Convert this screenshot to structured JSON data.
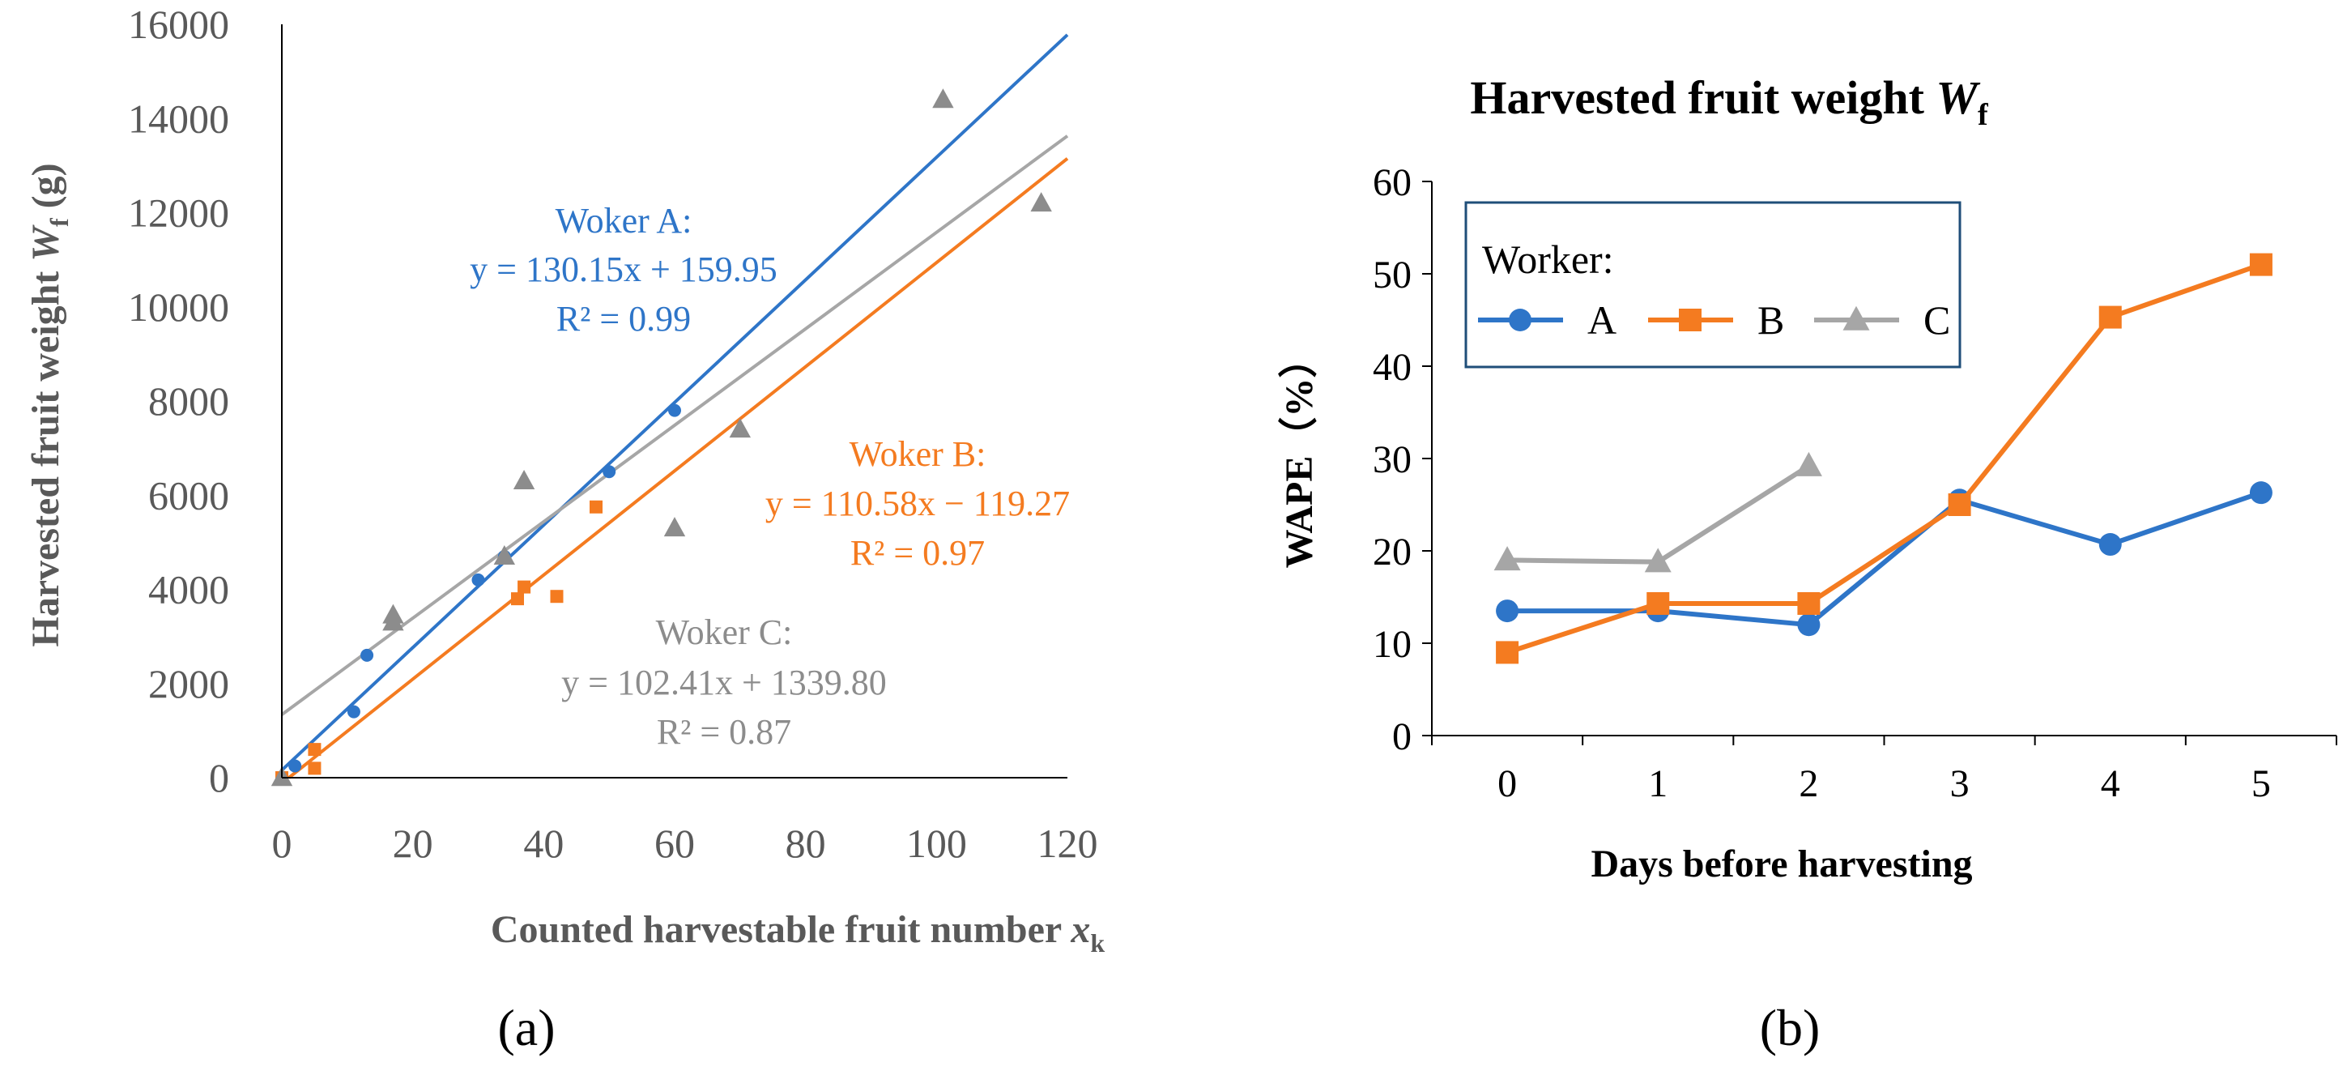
{
  "colors": {
    "A": "#2e75c8",
    "B": "#f47b20",
    "C": "#8c8c8c",
    "C_line": "#a6a6a6",
    "axis": "#000000",
    "tick_text": "#595959",
    "axis_title": "#595959"
  },
  "chart_data": [
    {
      "panel": "a",
      "type": "scatter",
      "title": "",
      "xlabel_main": "Counted harvestable fruit number ",
      "xlabel_var": "x",
      "xlabel_sub": "k",
      "ylabel_main": "Harvested fruit weight ",
      "ylabel_var": "W",
      "ylabel_sub": "f",
      "ylabel_unit": " (g)",
      "xlim": [
        0,
        120
      ],
      "ylim": [
        0,
        16000
      ],
      "xticks": [
        "0",
        "20",
        "40",
        "60",
        "80",
        "100",
        "120"
      ],
      "yticks": [
        "0",
        "2000",
        "4000",
        "6000",
        "8000",
        "10000",
        "12000",
        "14000",
        "16000"
      ],
      "grid": false,
      "series": [
        {
          "name": "Woker A",
          "marker": "circle",
          "points": [
            [
              0,
              0
            ],
            [
              2,
              250
            ],
            [
              11,
              1400
            ],
            [
              13,
              2600
            ],
            [
              30,
              4200
            ],
            [
              34,
              4700
            ],
            [
              50,
              6500
            ],
            [
              60,
              7800
            ]
          ],
          "fit": {
            "slope": 130.15,
            "intercept": 159.95
          },
          "eq": "y = 130.15x + 159.95",
          "r2": "R² = 0.99"
        },
        {
          "name": "Woker B",
          "marker": "square",
          "points": [
            [
              0,
              0
            ],
            [
              5,
              200
            ],
            [
              5,
              600
            ],
            [
              36,
              3800
            ],
            [
              37,
              4050
            ],
            [
              42,
              3850
            ],
            [
              48,
              5750
            ]
          ],
          "fit": {
            "slope": 110.58,
            "intercept": -119.27
          },
          "eq": "y = 110.58x − 119.27",
          "r2": "R² = 0.97"
        },
        {
          "name": "Woker C",
          "marker": "triangle",
          "points": [
            [
              0,
              0
            ],
            [
              17,
              3300
            ],
            [
              17,
              3450
            ],
            [
              34,
              4700
            ],
            [
              37,
              6300
            ],
            [
              60,
              5300
            ],
            [
              70,
              7400
            ],
            [
              101,
              14400
            ],
            [
              116,
              12200
            ]
          ],
          "fit": {
            "slope": 102.41,
            "intercept": 1339.8
          },
          "eq": "y = 102.41x + 1339.80",
          "r2": "R² = 0.87"
        }
      ],
      "panel_label": "(a)"
    },
    {
      "panel": "b",
      "type": "line",
      "title_main": "Harvested fruit weight ",
      "title_var": "W",
      "title_sub": "f",
      "xlabel": "Days before harvesting",
      "ylabel": "WAPE（%）",
      "categories": [
        "0",
        "1",
        "2",
        "3",
        "4",
        "5"
      ],
      "xlim": [
        -0.5,
        5.5
      ],
      "ylim": [
        0,
        60
      ],
      "yticks": [
        "0",
        "10",
        "20",
        "30",
        "40",
        "50",
        "60"
      ],
      "grid": false,
      "legend_title": "Worker:",
      "legend_position": "top-left",
      "series": [
        {
          "name": "A",
          "marker": "circle",
          "values": [
            13.5,
            13.5,
            12.0,
            25.5,
            20.7,
            26.3
          ]
        },
        {
          "name": "B",
          "marker": "square",
          "values": [
            9.0,
            14.3,
            14.3,
            25.0,
            45.3,
            51.0
          ]
        },
        {
          "name": "C",
          "marker": "triangle",
          "values": [
            19.0,
            18.8,
            29.2,
            null,
            null,
            null
          ]
        }
      ],
      "panel_label": "(b)"
    }
  ]
}
